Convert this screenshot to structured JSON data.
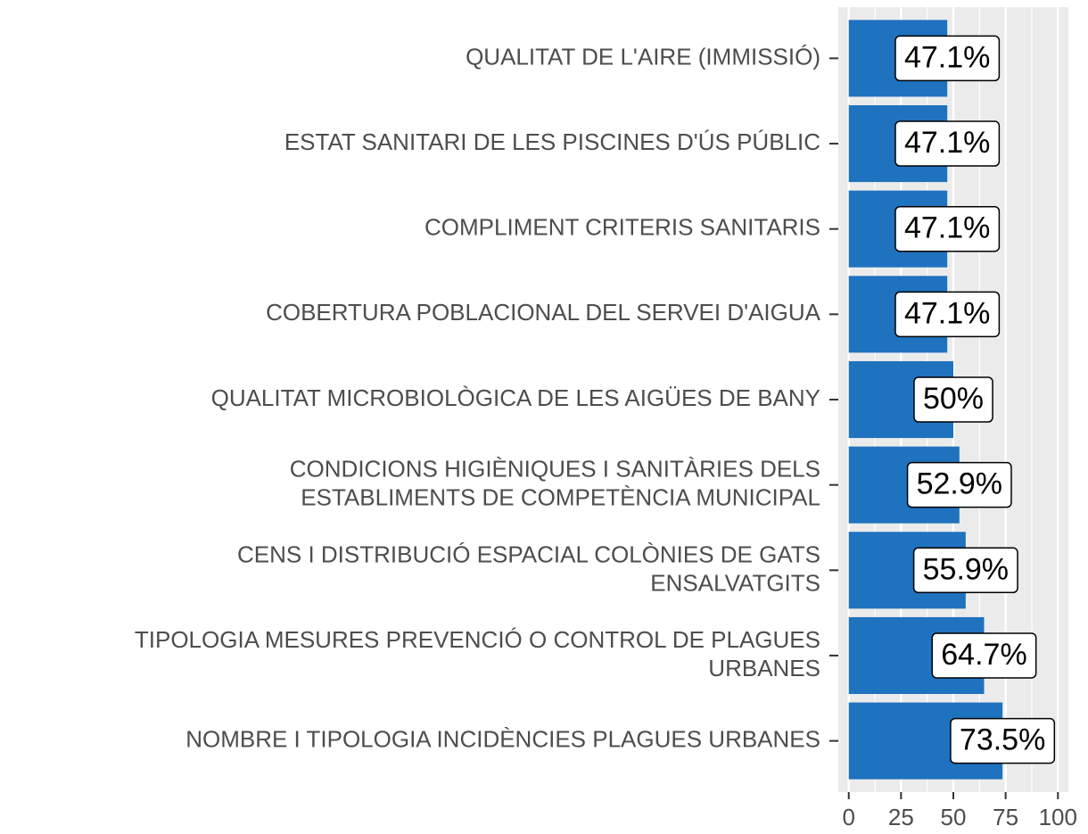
{
  "chart_data": {
    "type": "bar",
    "orientation": "horizontal",
    "categories": [
      "QUALITAT DE L'AIRE (IMMISSIÓ)",
      "ESTAT SANITARI DE LES PISCINES D'ÚS PÚBLIC",
      "COMPLIMENT CRITERIS SANITARIS",
      "COBERTURA POBLACIONAL DEL SERVEI D'AIGUA",
      "QUALITAT MICROBIOLÒGICA DE LES AIGÜES DE BANY",
      "CONDICIONS HIGIÈNIQUES I SANITÀRIES DELS\nESTABLIMENTS DE COMPETÈNCIA MUNICIPAL",
      "CENS I DISTRIBUCIÓ ESPACIAL COLÒNIES DE GATS\nENSALVATGITS",
      "TIPOLOGIA MESURES PREVENCIÓ O CONTROL DE PLAGUES\nURBANES",
      "NOMBRE I TIPOLOGIA INCIDÈNCIES PLAGUES URBANES"
    ],
    "values": [
      47.1,
      47.1,
      47.1,
      47.1,
      50,
      52.9,
      55.9,
      64.7,
      73.5
    ],
    "value_labels": [
      "47.1%",
      "47.1%",
      "47.1%",
      "47.1%",
      "50%",
      "52.9%",
      "55.9%",
      "64.7%",
      "73.5%"
    ],
    "color": "#1f72be",
    "xlim": [
      -5,
      105
    ],
    "xticks": [
      0,
      25,
      50,
      75,
      100
    ],
    "x_minor_grid": [
      12.5,
      37.5,
      62.5,
      87.5
    ],
    "grid": true
  }
}
